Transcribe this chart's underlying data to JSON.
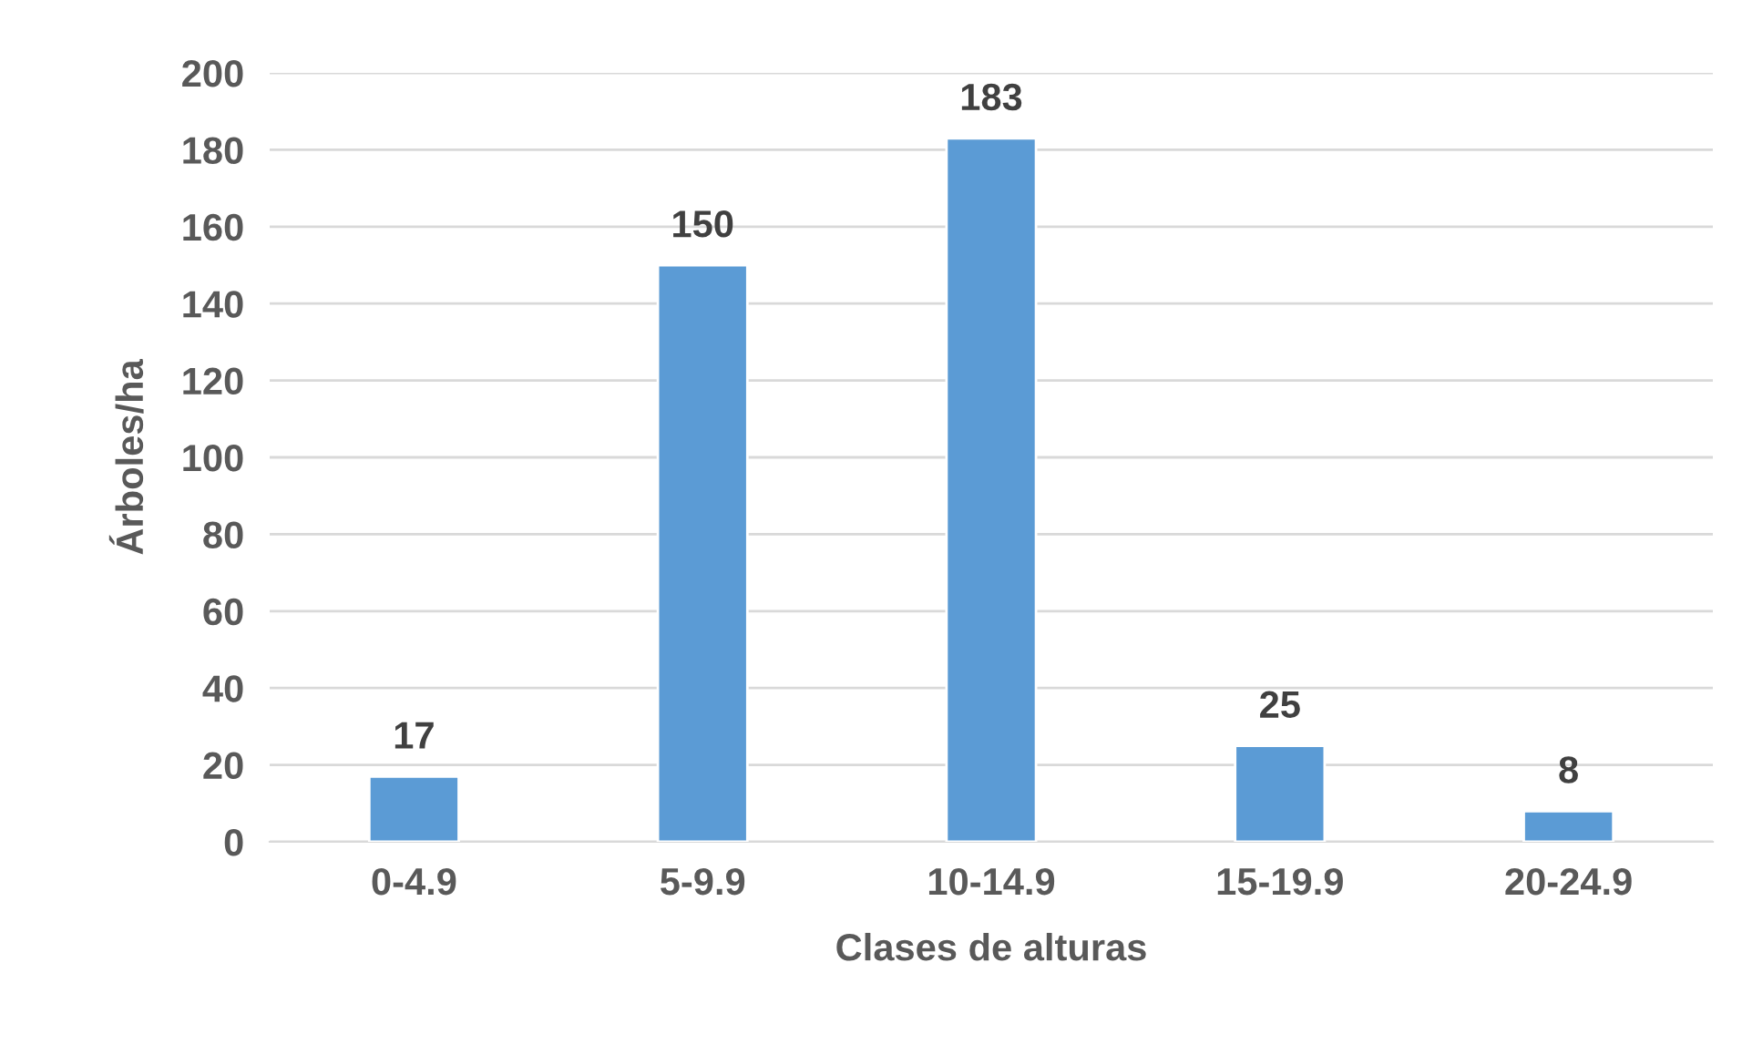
{
  "chart_data": {
    "type": "bar",
    "xlabel": "Clases de alturas",
    "ylabel": "Árboles/ha",
    "categories": [
      "0-4.9",
      "5-9.9",
      "10-14.9",
      "15-19.9",
      "20-24.9"
    ],
    "values": [
      17,
      150,
      183,
      25,
      8
    ],
    "color": "#5b9bd5",
    "ylim": [
      0,
      200
    ],
    "yticks": [
      0,
      20,
      40,
      60,
      80,
      100,
      120,
      140,
      160,
      180,
      200
    ],
    "grid": "y",
    "data_labels": true
  }
}
